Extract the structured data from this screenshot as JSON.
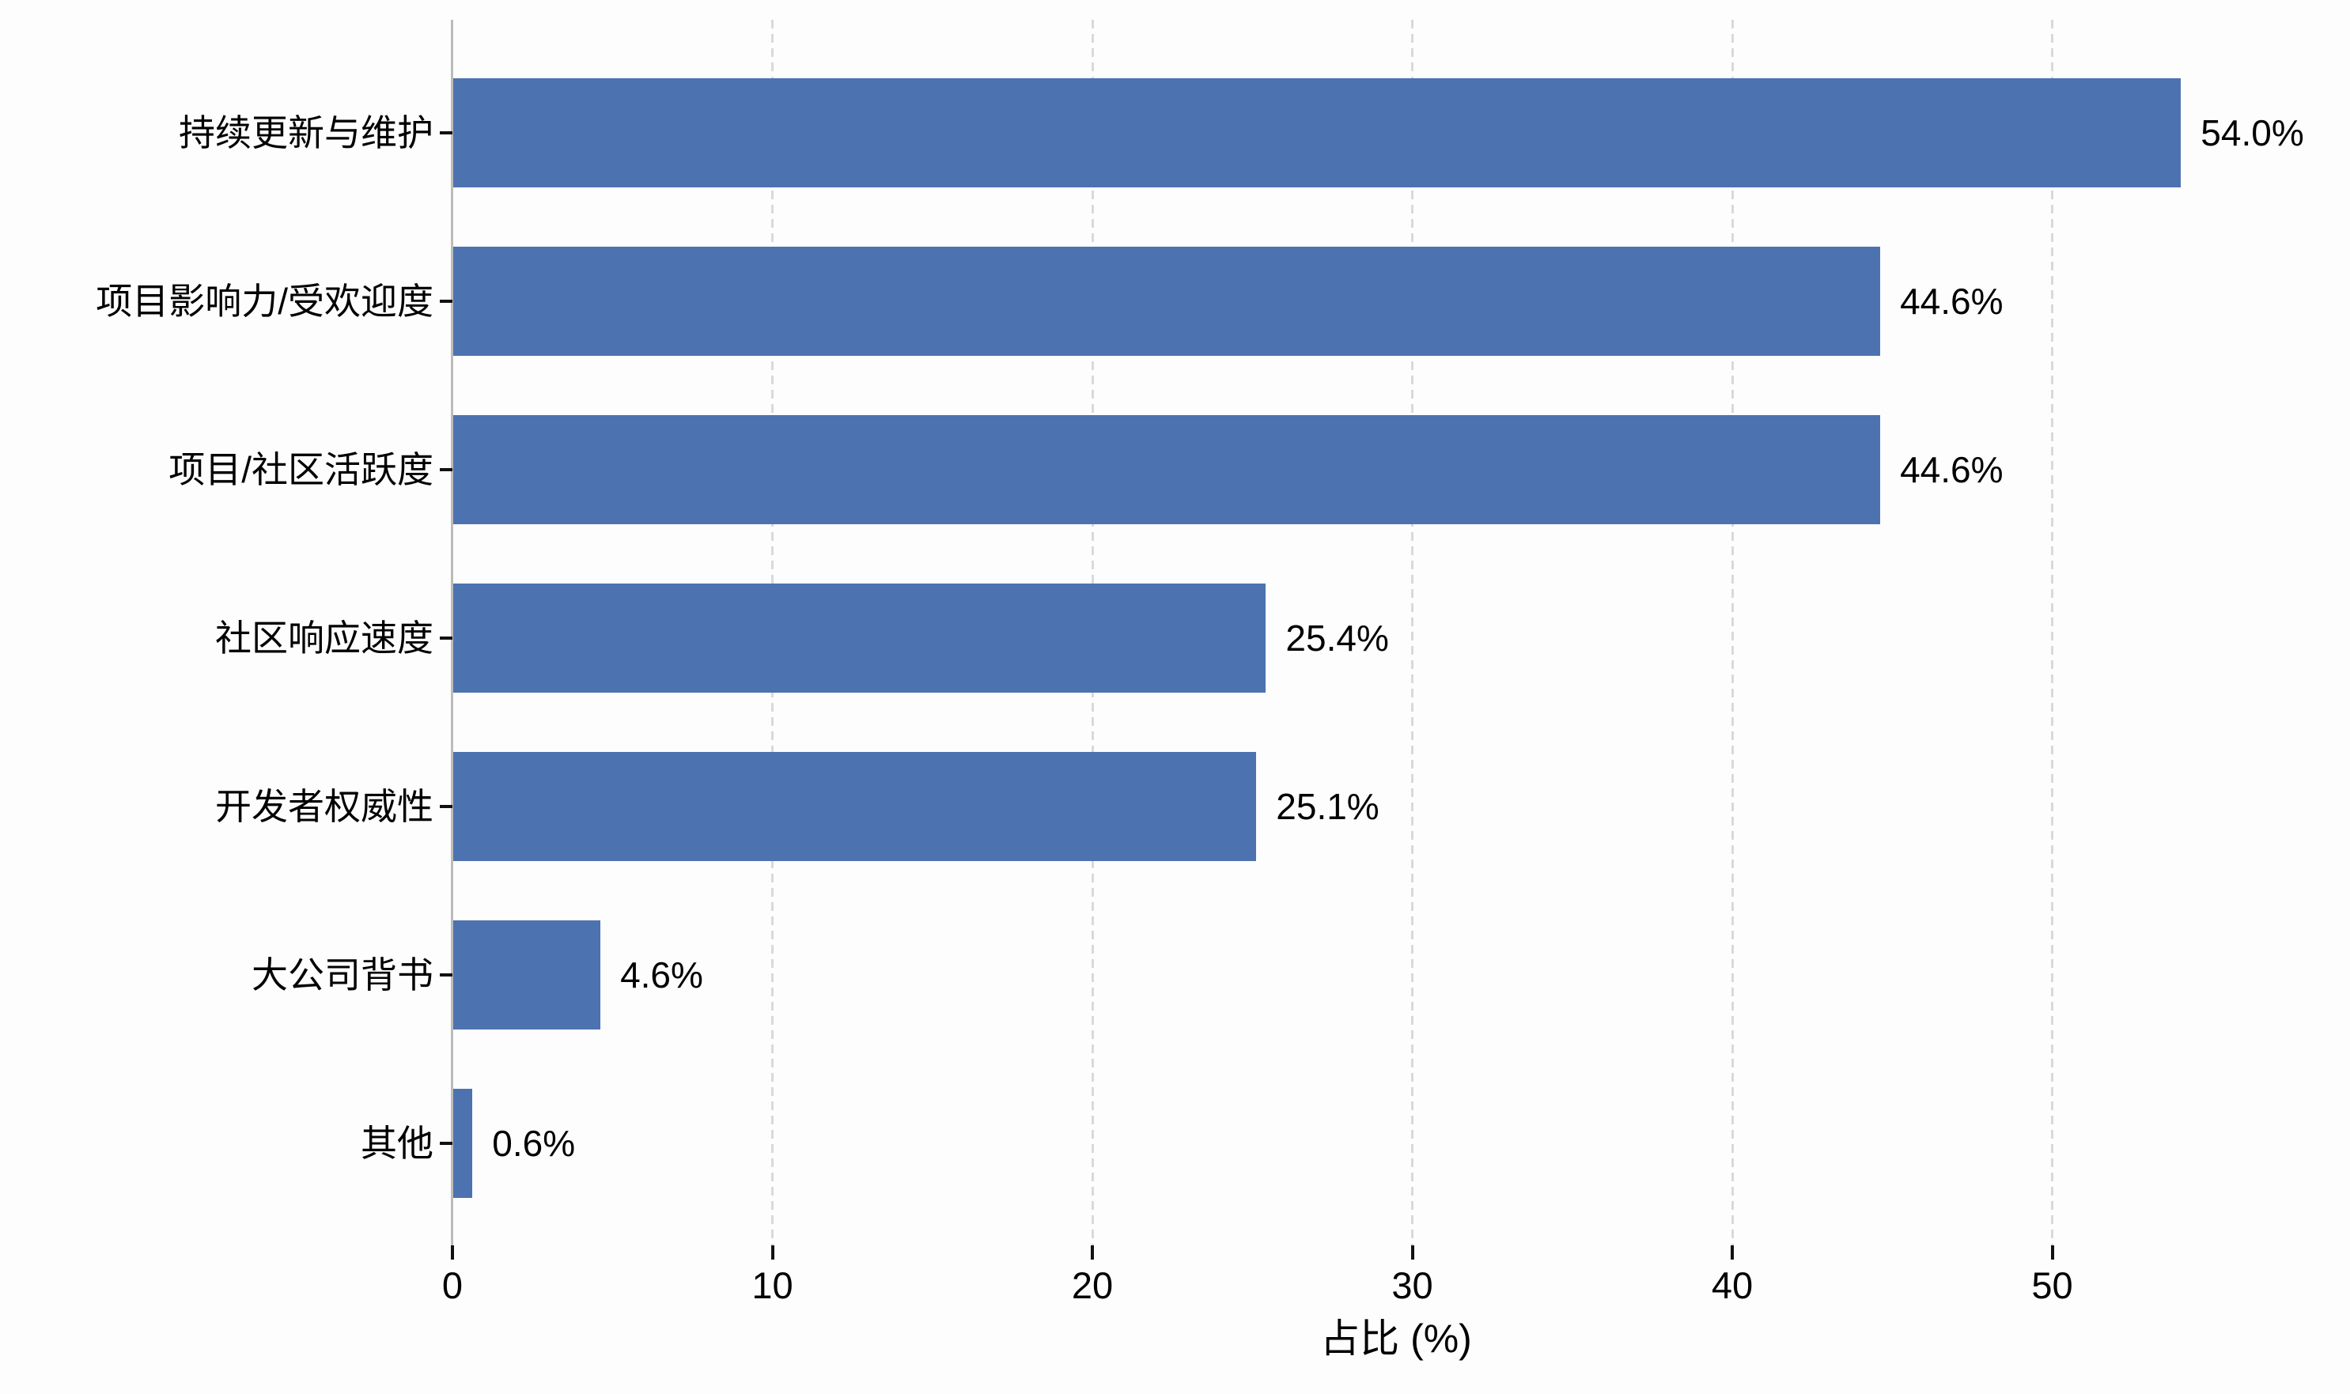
{
  "chart_data": {
    "type": "bar",
    "orientation": "horizontal",
    "title": "",
    "categories": [
      "持续更新与维护",
      "项目影响力/受欢迎度",
      "项目/社区活跃度",
      "社区响应速度",
      "开发者权威性",
      "大公司背书",
      "其他"
    ],
    "values": [
      54.0,
      44.6,
      44.6,
      25.4,
      25.1,
      4.6,
      0.6
    ],
    "value_labels": [
      "54.0%",
      "44.6%",
      "44.6%",
      "25.4%",
      "25.1%",
      "4.6%",
      "0.6%"
    ],
    "xlabel": "占比 (%)",
    "ylabel": "",
    "x_ticks": [
      0,
      10,
      20,
      30,
      40,
      50
    ],
    "xlim": [
      0,
      58.7
    ],
    "grid": "vertical-dashed",
    "legend": "none",
    "colors": {
      "bar": "#4C72B0",
      "grid": "#d9d9d9",
      "spine": "#bcbcbc",
      "tick": "#111111",
      "text": "#000000",
      "background": "#fdfdfd"
    }
  }
}
